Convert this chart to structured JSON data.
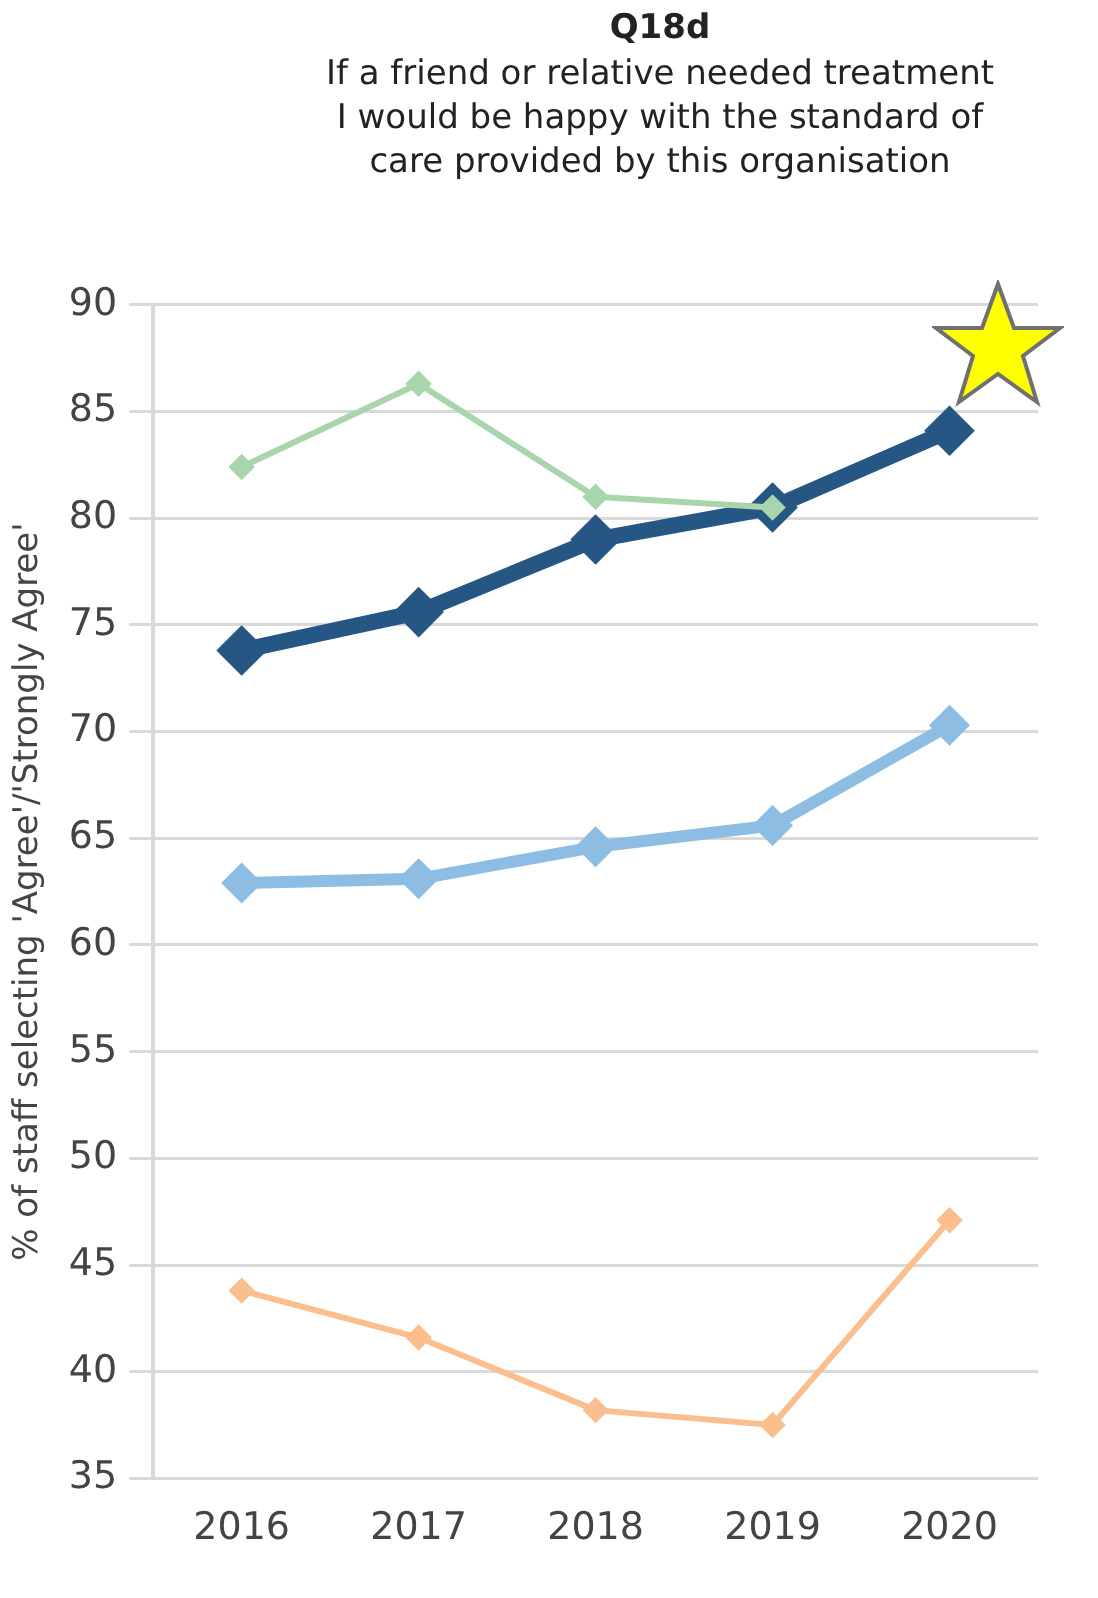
{
  "chart_data": {
    "type": "line",
    "title": "Q18d",
    "subtitle": "If a friend or relative needed treatment I would be happy with the standard of care provided by this organisation",
    "ylabel": "% of staff selecting 'Agree'/'Strongly Agree'",
    "categories": [
      "2016",
      "2017",
      "2018",
      "2019",
      "2020"
    ],
    "series": [
      {
        "color": "#a9d5ad",
        "values": [
          82.4,
          86.3,
          81.0,
          80.5,
          null
        ]
      },
      {
        "color": "#8dbde2",
        "values": [
          62.9,
          63.1,
          64.6,
          65.6,
          70.3
        ]
      },
      {
        "color": "#fbbf8f",
        "values": [
          43.8,
          41.6,
          38.2,
          37.5,
          47.1
        ]
      },
      {
        "color": "#265684",
        "values": [
          73.8,
          75.6,
          79.0,
          80.5,
          84.1
        ]
      }
    ],
    "ylim": [
      35,
      90
    ],
    "yticks": [
      35,
      40,
      45,
      50,
      55,
      60,
      65,
      70,
      75,
      80,
      85,
      90
    ],
    "grid": "y",
    "legend": false,
    "marker": "diamond",
    "line_style": "solid"
  }
}
